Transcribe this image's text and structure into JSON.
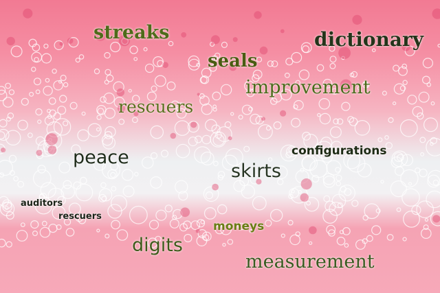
{
  "image": {
    "background_colors": {
      "top_pink": "#f27a93",
      "foam_white": "#eef0f2",
      "bottom_pink": "#f7a9b9"
    },
    "words": [
      {
        "id": "streaks",
        "text": "streaks",
        "color": "#4f6b1a"
      },
      {
        "id": "dictionary",
        "text": "dictionary",
        "color": "#24341a"
      },
      {
        "id": "seals",
        "text": "seals",
        "color": "#4a5c12"
      },
      {
        "id": "improvement",
        "text": "improvement",
        "color": "#4a6a1a"
      },
      {
        "id": "rescuers1",
        "text": "rescuers",
        "color": "#5a6e1c"
      },
      {
        "id": "configurations",
        "text": "configurations",
        "color": "#1d2a14"
      },
      {
        "id": "peace",
        "text": "peace",
        "color": "#1f2c1b"
      },
      {
        "id": "skirts",
        "text": "skirts",
        "color": "#273523"
      },
      {
        "id": "auditors",
        "text": "auditors",
        "color": "#1b2318"
      },
      {
        "id": "rescuers2",
        "text": "rescuers",
        "color": "#1b2318"
      },
      {
        "id": "moneys",
        "text": "moneys",
        "color": "#6a7d14"
      },
      {
        "id": "digits",
        "text": "digits",
        "color": "#3f5a1a"
      },
      {
        "id": "measurement",
        "text": "measurement",
        "color": "#3a5a20"
      }
    ]
  }
}
